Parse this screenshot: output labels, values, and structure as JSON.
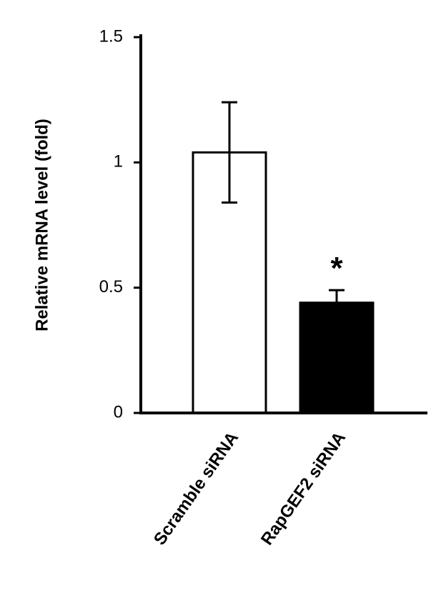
{
  "chart_data": {
    "type": "bar",
    "ylabel": "Relative mRNA level (fold)",
    "categories": [
      "Scramble siRNA",
      "RapGEF2 siRNA"
    ],
    "values": [
      1.04,
      0.44
    ],
    "errors": [
      0.2,
      0.05
    ],
    "colors": [
      "#ffffff",
      "#000000"
    ],
    "annotation": "*",
    "ylim": [
      0,
      1.5
    ],
    "yticks": [
      0,
      0.5,
      1,
      1.5
    ],
    "grid": false
  }
}
